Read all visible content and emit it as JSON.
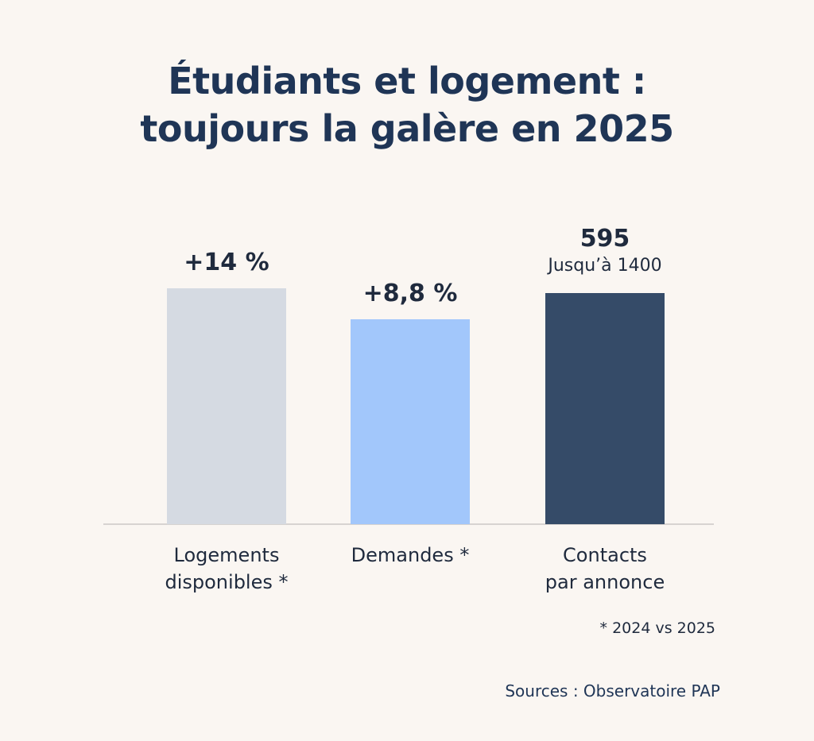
{
  "title_lines": [
    "Étudiants et logement :",
    "toujours la galère en 2025"
  ],
  "chart_data": {
    "type": "bar",
    "categories": [
      [
        "Logements",
        "disponibles *"
      ],
      [
        "Demandes *"
      ],
      [
        "Contacts",
        "par annonce"
      ]
    ],
    "value_labels": [
      {
        "main": "+14 %",
        "sub": ""
      },
      {
        "main": "+8,8 %",
        "sub": ""
      },
      {
        "main": "595",
        "sub": "Jusqu’à 1400"
      }
    ],
    "bar_heights_relative": [
      1.0,
      0.87,
      0.98
    ],
    "colors": [
      "#d5dae2",
      "#a2c7fb",
      "#354b68"
    ],
    "xlabel": "",
    "ylabel": ""
  },
  "footnote": "* 2024 vs 2025",
  "sources": "Sources : Observatoire PAP",
  "colors": {
    "background": "#faf6f2",
    "title": "#1f3556",
    "text": "#1f2a3d"
  }
}
